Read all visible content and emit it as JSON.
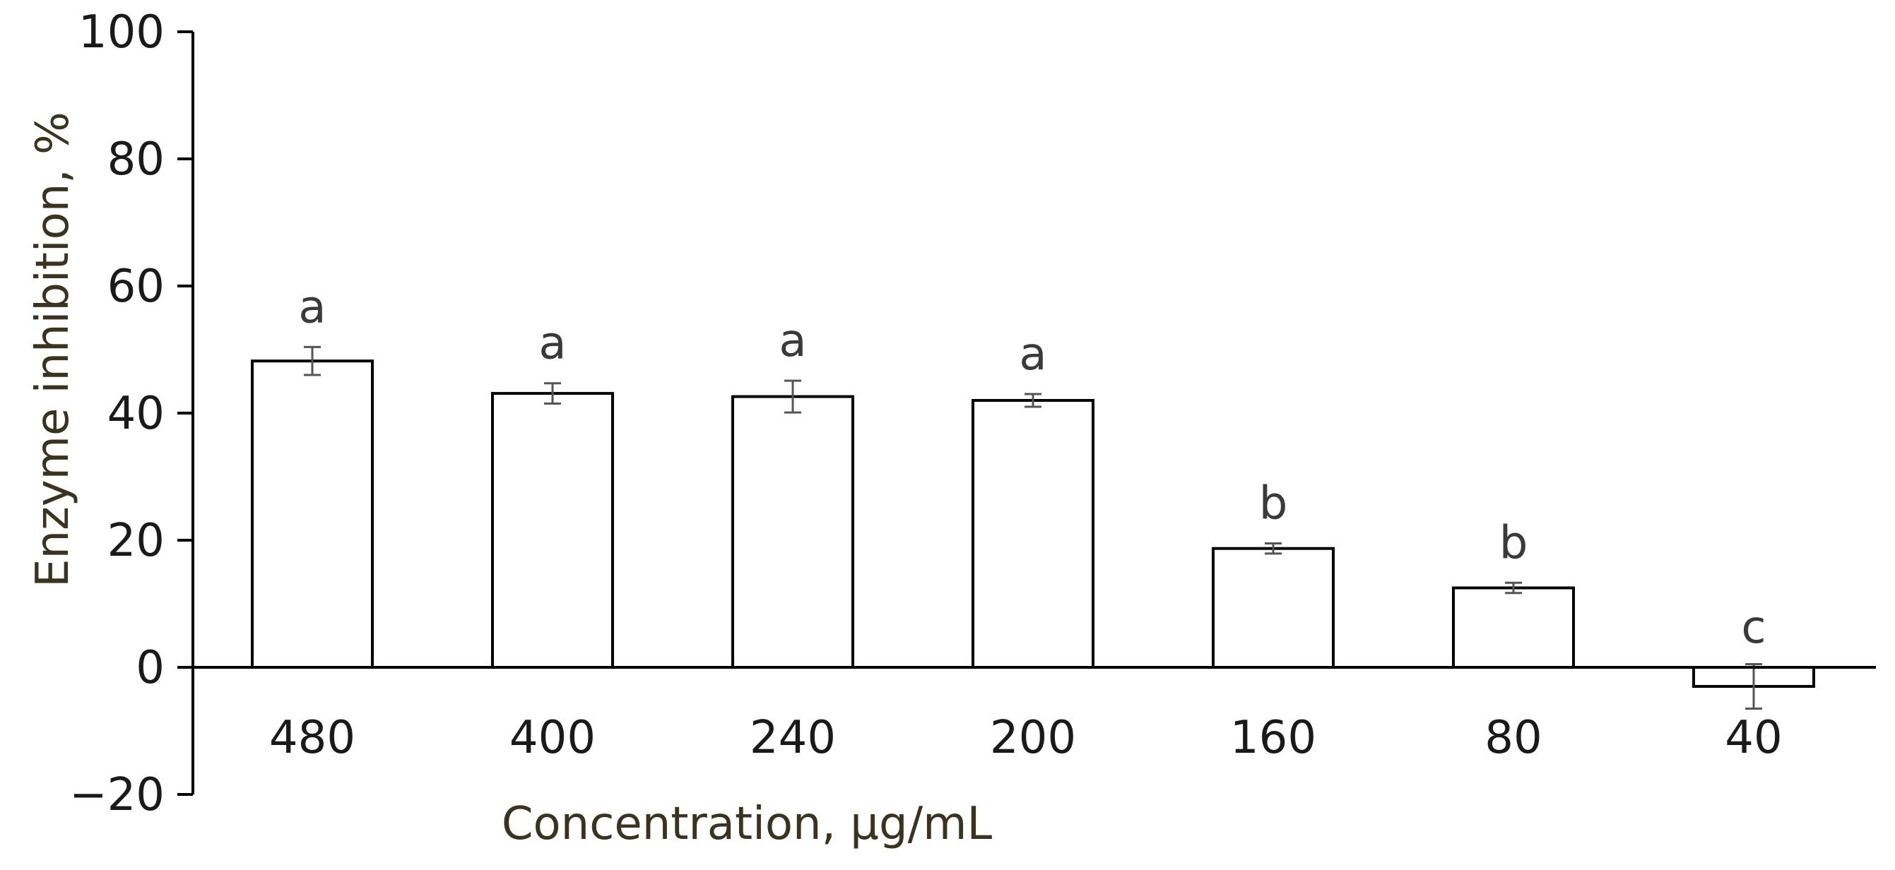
{
  "chart_data": {
    "type": "bar",
    "xlabel": "Concentration, μg/mL",
    "ylabel": "Enzyme inhibition, %",
    "ylim": [
      -20,
      100
    ],
    "yticks": [
      -20,
      0,
      20,
      40,
      60,
      80,
      100
    ],
    "ytick_labels": [
      "−20",
      "0",
      "20",
      "40",
      "60",
      "80",
      "100"
    ],
    "categories": [
      "480",
      "400",
      "240",
      "200",
      "160",
      "80",
      "40"
    ],
    "values": [
      48.2,
      43.1,
      42.6,
      42.0,
      18.7,
      12.5,
      -3.0
    ],
    "errors": [
      2.2,
      1.6,
      2.5,
      1.0,
      0.8,
      0.8,
      3.5
    ],
    "significance": [
      "a",
      "a",
      "a",
      "a",
      "b",
      "b",
      "c"
    ],
    "grid": false,
    "colors": {
      "bar_fill": "#ffffff",
      "bar_stroke": "#000000",
      "error_bar": "#555555"
    }
  }
}
